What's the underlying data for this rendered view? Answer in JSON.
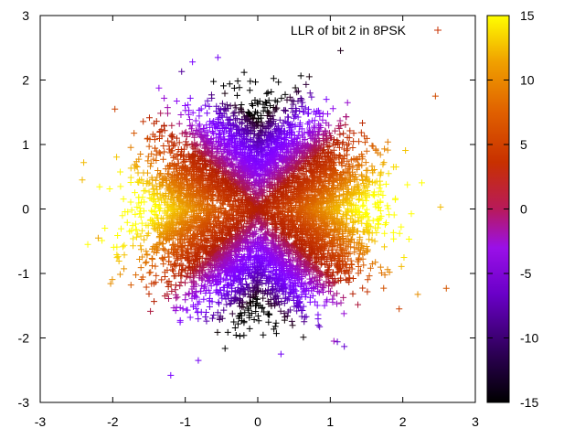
{
  "chart_data": {
    "type": "scatter",
    "title": "",
    "xlabel": "",
    "ylabel": "",
    "xlim": [
      -3,
      3
    ],
    "ylim": [
      -3,
      3
    ],
    "x_ticks": [
      -3,
      -2,
      -1,
      0,
      1,
      2,
      3
    ],
    "y_ticks": [
      -3,
      -2,
      -1,
      0,
      1,
      2,
      3
    ],
    "grid": false,
    "marker": "+",
    "legend": {
      "label": "LLR of bit 2 in 8PSK",
      "position": "top-right"
    },
    "colorbar": {
      "range": [
        -15,
        15
      ],
      "ticks": [
        15,
        10,
        5,
        0,
        -5,
        -10,
        -15
      ],
      "colormap": "gnuplot-pm3d"
    },
    "series": [
      {
        "name": "LLR of bit 2 in 8PSK",
        "description_of_distribution": "noisy 8PSK samples, radius approximately Gaussian around unit circle",
        "color_value": "LLR (color-mapped)",
        "sample_points": [
          {
            "x": -2.4,
            "y": 0.72,
            "llr": 12
          },
          {
            "x": -2.42,
            "y": 0.45,
            "llr": 12
          },
          {
            "x": -2.2,
            "y": -0.45,
            "llr": 11
          },
          {
            "x": -0.55,
            "y": 2.35,
            "llr": -9
          },
          {
            "x": -0.9,
            "y": 2.28,
            "llr": -8
          },
          {
            "x": -1.2,
            "y": -2.58,
            "llr": -8
          },
          {
            "x": -0.82,
            "y": -2.35,
            "llr": -9
          },
          {
            "x": 2.6,
            "y": -1.23,
            "llr": 6
          },
          {
            "x": 2.52,
            "y": 0.03,
            "llr": 12
          },
          {
            "x": 2.45,
            "y": 1.75,
            "llr": 5
          },
          {
            "x": 1.05,
            "y": -2.05,
            "llr": -4
          },
          {
            "x": 0.32,
            "y": -2.25,
            "llr": -9
          },
          {
            "x": -1.97,
            "y": 1.55,
            "llr": 4
          },
          {
            "x": 1.95,
            "y": -1.55,
            "llr": 4
          }
        ]
      }
    ]
  }
}
